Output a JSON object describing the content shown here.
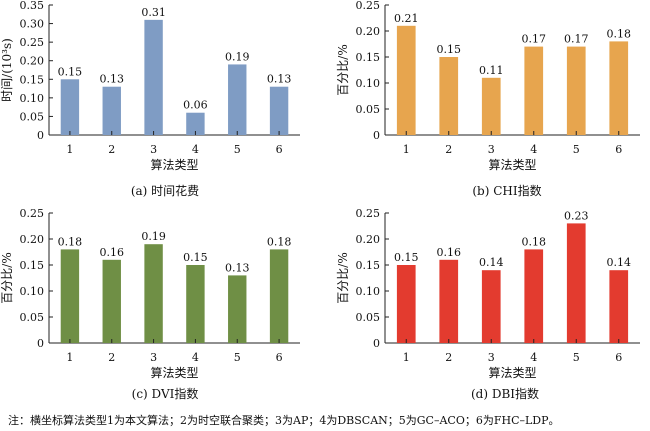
{
  "chart_data": [
    {
      "type": "bar",
      "caption": "(a) 时间花费",
      "xlabel": "算法类型",
      "ylabel": "时间/(10³s)",
      "categories": [
        "1",
        "2",
        "3",
        "4",
        "5",
        "6"
      ],
      "values": [
        0.15,
        0.13,
        0.31,
        0.06,
        0.19,
        0.13
      ],
      "value_labels": [
        "0.15",
        "0.13",
        "0.31",
        "0.06",
        "0.19",
        "0.13"
      ],
      "ylim": [
        0,
        0.35
      ],
      "yticks": [
        "0",
        "0.05",
        "0.10",
        "0.15",
        "0.20",
        "0.25",
        "0.30",
        "0.35"
      ],
      "color": "#7f9cc4",
      "grid": false
    },
    {
      "type": "bar",
      "caption": "(b) CHI指数",
      "xlabel": "算法类型",
      "ylabel": "百分比/%",
      "categories": [
        "1",
        "2",
        "3",
        "4",
        "5",
        "6"
      ],
      "values": [
        0.21,
        0.15,
        0.11,
        0.17,
        0.17,
        0.18
      ],
      "value_labels": [
        "0.21",
        "0.15",
        "0.11",
        "0.17",
        "0.17",
        "0.18"
      ],
      "ylim": [
        0,
        0.25
      ],
      "yticks": [
        "0",
        "0.05",
        "0.10",
        "0.15",
        "0.20",
        "0.25"
      ],
      "color": "#e7a54e",
      "grid": false
    },
    {
      "type": "bar",
      "caption": "(c) DVI指数",
      "xlabel": "算法类型",
      "ylabel": "百分比/%",
      "categories": [
        "1",
        "2",
        "3",
        "4",
        "5",
        "6"
      ],
      "values": [
        0.18,
        0.16,
        0.19,
        0.15,
        0.13,
        0.18
      ],
      "value_labels": [
        "0.18",
        "0.16",
        "0.19",
        "0.15",
        "0.13",
        "0.18"
      ],
      "ylim": [
        0,
        0.25
      ],
      "yticks": [
        "0",
        "0.05",
        "0.10",
        "0.15",
        "0.20",
        "0.25"
      ],
      "color": "#6f8f45",
      "grid": false
    },
    {
      "type": "bar",
      "caption": "(d) DBI指数",
      "xlabel": "算法类型",
      "ylabel": "百分比/%",
      "categories": [
        "1",
        "2",
        "3",
        "4",
        "5",
        "6"
      ],
      "values": [
        0.15,
        0.16,
        0.14,
        0.18,
        0.23,
        0.14
      ],
      "value_labels": [
        "0.15",
        "0.16",
        "0.14",
        "0.18",
        "0.23",
        "0.14"
      ],
      "ylim": [
        0,
        0.25
      ],
      "yticks": [
        "0",
        "0.05",
        "0.10",
        "0.15",
        "0.20",
        "0.25"
      ],
      "color": "#e33b2f",
      "grid": false
    }
  ],
  "note": "注：横坐标算法类型1为本文算法；2为时空联合聚类；3为AP；4为DBSCAN；5为GC–ACO；6为FHC–LDP。"
}
